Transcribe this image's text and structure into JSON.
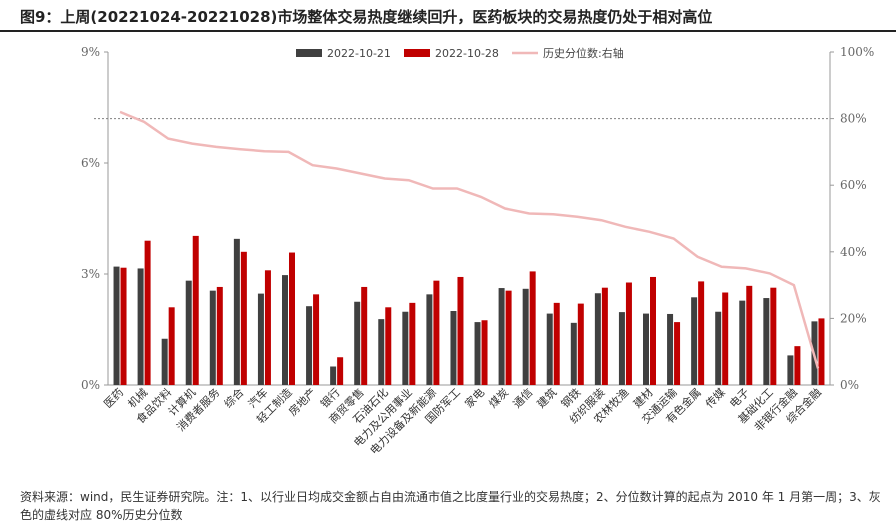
{
  "title": "图9：上周(20221024-20221028)市场整体交易热度继续回升，医药板块的交易热度仍处于相对高位",
  "source": "资料来源：wind，民生证券研究院。注：1、以行业日均成交金额占自由流通市值之比度量行业的交易热度；2、分位数计算的起点为 2010 年 1 月第一周；3、灰色的虚线对应 80%历史分位数",
  "colors": {
    "series1": "#404040",
    "series2": "#c00000",
    "series3": "#f0b8b8",
    "ref_line": "#808080"
  },
  "chart_data": {
    "type": "bar",
    "categories": [
      "医药",
      "机械",
      "食品饮料",
      "计算机",
      "消费者服务",
      "综合",
      "汽车",
      "轻工制造",
      "房地产",
      "银行",
      "商贸零售",
      "石油石化",
      "电力及公用事业",
      "电力设备及新能源",
      "国防军工",
      "家电",
      "煤炭",
      "通信",
      "建筑",
      "钢铁",
      "纺织服装",
      "农林牧渔",
      "建材",
      "交通运输",
      "有色金属",
      "传媒",
      "电子",
      "基础化工",
      "非银行金融",
      "综合金融"
    ],
    "series": [
      {
        "name": "2022-10-21",
        "axis": "left",
        "values": [
          3.2,
          3.15,
          1.25,
          2.82,
          2.55,
          3.95,
          2.47,
          2.97,
          2.13,
          0.5,
          2.25,
          1.78,
          1.98,
          2.45,
          2.0,
          1.7,
          2.62,
          2.6,
          1.93,
          1.68,
          2.48,
          1.97,
          1.93,
          1.92,
          2.37,
          1.98,
          2.28,
          2.35,
          0.8,
          1.72
        ]
      },
      {
        "name": "2022-10-28",
        "axis": "left",
        "values": [
          3.17,
          3.9,
          2.1,
          4.03,
          2.65,
          3.6,
          3.1,
          3.58,
          2.45,
          0.75,
          2.65,
          2.1,
          2.22,
          2.82,
          2.92,
          1.75,
          2.55,
          3.07,
          2.22,
          2.2,
          2.63,
          2.77,
          2.92,
          1.7,
          2.8,
          2.5,
          2.68,
          2.63,
          1.05,
          1.8
        ]
      },
      {
        "name": "历史分位数:右轴",
        "axis": "right",
        "type": "line",
        "values": [
          82,
          79,
          74,
          72.5,
          71.5,
          70.8,
          70.2,
          70,
          66,
          65,
          63.5,
          62,
          61.5,
          59,
          59,
          56.5,
          53,
          51.5,
          51.3,
          50.5,
          49.5,
          47.5,
          46,
          44,
          38.5,
          35.5,
          35,
          33.5,
          30,
          5
        ]
      }
    ],
    "y_left": {
      "ticks": [
        0,
        3,
        6,
        9
      ],
      "tick_labels": [
        "0%",
        "3%",
        "6%",
        "9%"
      ],
      "ylim": [
        0,
        9
      ]
    },
    "y_right": {
      "ticks": [
        0,
        20,
        40,
        60,
        80,
        100
      ],
      "tick_labels": [
        "0%",
        "20%",
        "40%",
        "60%",
        "80%",
        "100%"
      ],
      "ylim": [
        0,
        100
      ]
    },
    "reference_line": {
      "axis": "right",
      "value": 80,
      "style": "dashed"
    },
    "legend_position": "top",
    "grid": false
  }
}
